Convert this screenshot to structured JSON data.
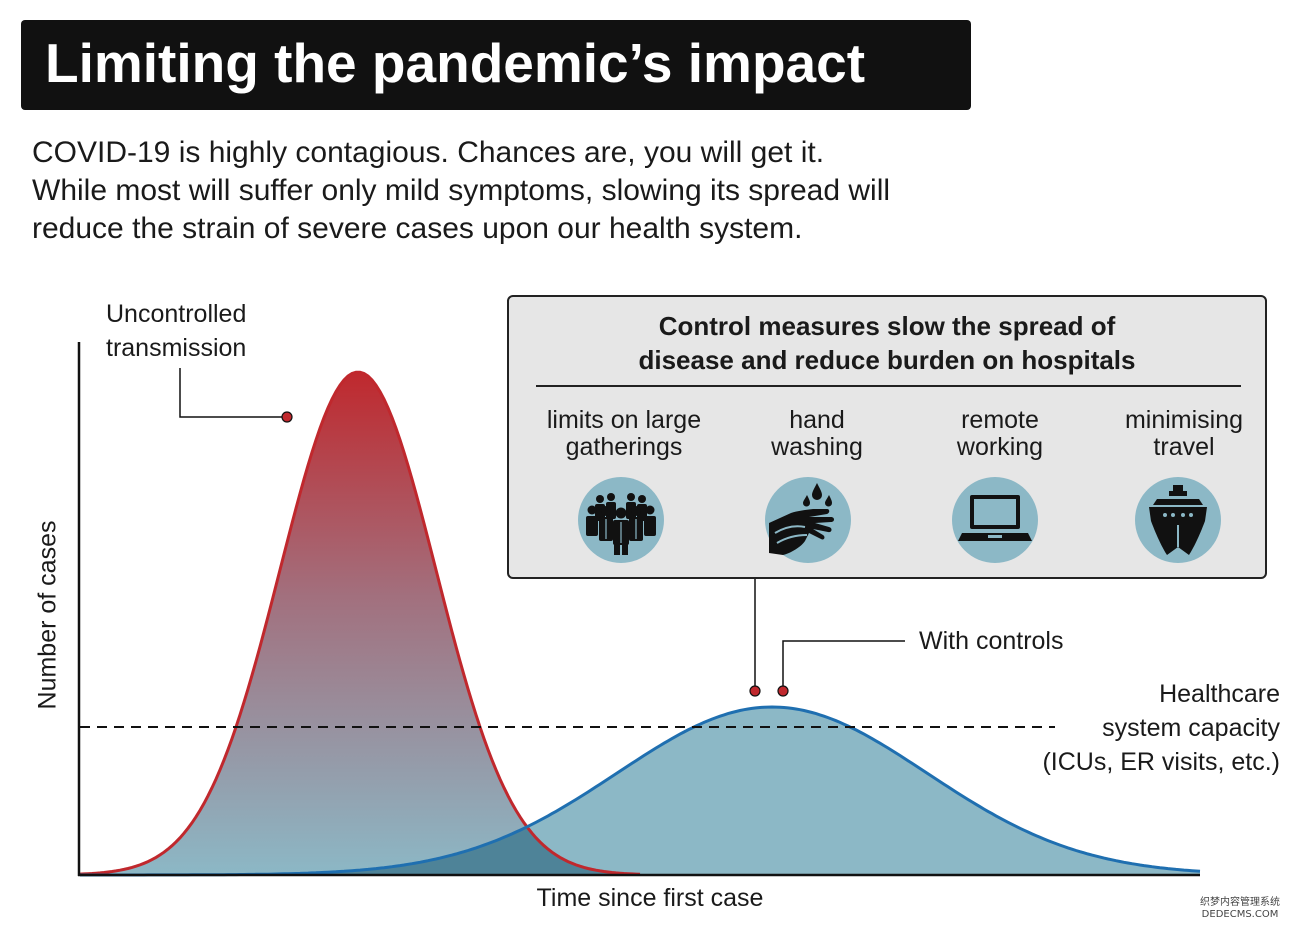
{
  "title": "Limiting the pandemic’s impact",
  "intro": [
    "COVID-19 is highly contagious. Chances are, you will get it.",
    "While most will suffer only mild symptoms, slowing its spread will",
    "reduce the strain of severe cases upon our health system."
  ],
  "chart": {
    "ylabel": "Number of cases",
    "xlabel": "Time since first case",
    "uncontrolled_label": [
      "Uncontrolled",
      "transmission"
    ],
    "controls_label": "With controls",
    "capacity_label": [
      "Healthcare",
      "system capacity",
      "(ICUs, ER visits, etc.)"
    ],
    "colors": {
      "uncontrolled": "#c0282d",
      "controlled": "#1f6fb0",
      "fill": "#8cb8c6"
    }
  },
  "control_box": {
    "heading": [
      "Control measures slow the spread of",
      "disease and reduce burden on hospitals"
    ],
    "measures": [
      {
        "label": [
          "limits on large",
          "gatherings"
        ],
        "icon": "crowd-icon"
      },
      {
        "label": [
          "hand",
          "washing"
        ],
        "icon": "hand-washing-icon"
      },
      {
        "label": [
          "remote",
          "working"
        ],
        "icon": "laptop-icon"
      },
      {
        "label": [
          "minimising",
          "travel"
        ],
        "icon": "ship-icon"
      }
    ]
  },
  "watermark": [
    "织梦内容管理系统",
    "DEDECMS.COM"
  ]
}
